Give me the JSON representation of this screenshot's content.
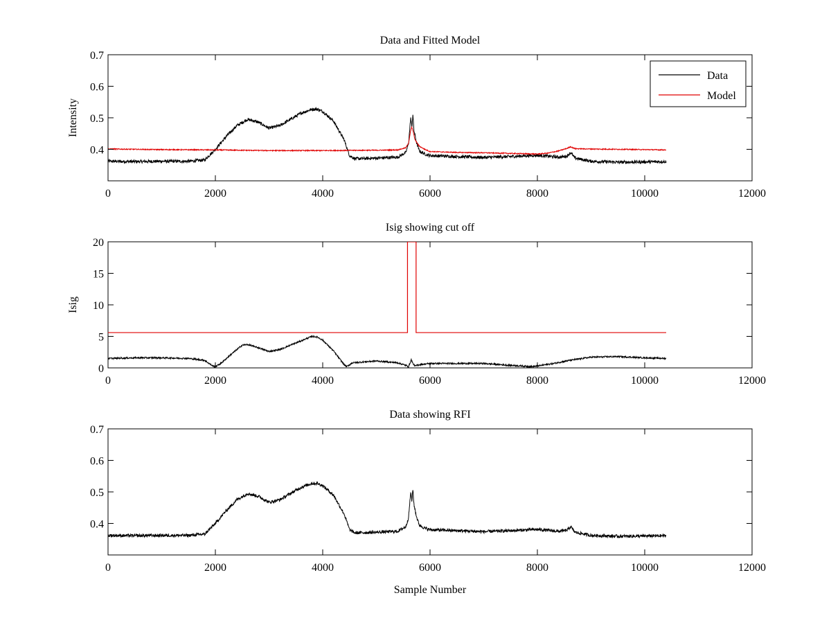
{
  "chart_data": [
    {
      "type": "line",
      "title": "Data and Fitted Model",
      "xlabel": "",
      "ylabel": "Intensity",
      "xlim": [
        0,
        12000
      ],
      "ylim": [
        0.3,
        0.7
      ],
      "xticks": [
        0,
        2000,
        4000,
        6000,
        8000,
        10000,
        12000
      ],
      "yticks": [
        0.4,
        0.5,
        0.6,
        0.7
      ],
      "grid": false,
      "legend": "top-right",
      "series": [
        {
          "name": "Data",
          "color": "#000000",
          "noise": 0.005,
          "x": [
            0,
            500,
            1000,
            1500,
            1800,
            2000,
            2200,
            2400,
            2600,
            2800,
            3000,
            3200,
            3400,
            3600,
            3800,
            3900,
            4000,
            4200,
            4400,
            4500,
            4600,
            5000,
            5400,
            5550,
            5600,
            5640,
            5660,
            5680,
            5700,
            5750,
            5800,
            5900,
            6000,
            6500,
            7000,
            7500,
            8000,
            8200,
            8400,
            8550,
            8620,
            8700,
            9000,
            9500,
            10000,
            10400
          ],
          "y": [
            0.362,
            0.361,
            0.362,
            0.362,
            0.366,
            0.4,
            0.44,
            0.475,
            0.495,
            0.486,
            0.467,
            0.475,
            0.495,
            0.515,
            0.527,
            0.527,
            0.52,
            0.49,
            0.43,
            0.38,
            0.37,
            0.372,
            0.375,
            0.39,
            0.42,
            0.5,
            0.47,
            0.51,
            0.46,
            0.42,
            0.395,
            0.385,
            0.38,
            0.377,
            0.374,
            0.377,
            0.381,
            0.378,
            0.375,
            0.378,
            0.39,
            0.372,
            0.362,
            0.359,
            0.36,
            0.361
          ]
        },
        {
          "name": "Model",
          "color": "#e00000",
          "noise": 0.0015,
          "x": [
            0,
            1000,
            2000,
            3000,
            4000,
            5000,
            5400,
            5550,
            5600,
            5640,
            5660,
            5680,
            5720,
            5800,
            5900,
            6000,
            6500,
            7000,
            7500,
            8000,
            8200,
            8400,
            8550,
            8620,
            8700,
            9000,
            9500,
            10000,
            10400
          ],
          "y": [
            0.401,
            0.399,
            0.398,
            0.396,
            0.396,
            0.397,
            0.398,
            0.405,
            0.42,
            0.46,
            0.47,
            0.46,
            0.43,
            0.41,
            0.4,
            0.393,
            0.39,
            0.389,
            0.387,
            0.385,
            0.388,
            0.395,
            0.403,
            0.408,
            0.402,
            0.401,
            0.4,
            0.399,
            0.398
          ]
        }
      ]
    },
    {
      "type": "line",
      "title": "Isig showing cut off",
      "xlabel": "",
      "ylabel": "Isig",
      "xlim": [
        0,
        12000
      ],
      "ylim": [
        0,
        20
      ],
      "xticks": [
        0,
        2000,
        4000,
        6000,
        8000,
        10000,
        12000
      ],
      "yticks": [
        0,
        5,
        10,
        15,
        20
      ],
      "grid": false,
      "series": [
        {
          "name": "",
          "color": "#000000",
          "noise": 0.12,
          "x": [
            0,
            500,
            1000,
            1500,
            1800,
            1950,
            2000,
            2100,
            2300,
            2500,
            2600,
            2800,
            3000,
            3200,
            3400,
            3600,
            3800,
            3900,
            4000,
            4200,
            4400,
            4450,
            4550,
            5000,
            5400,
            5550,
            5600,
            5650,
            5680,
            5720,
            5800,
            6000,
            6500,
            7000,
            7500,
            7900,
            8000,
            8300,
            8600,
            9000,
            9500,
            10000,
            10400
          ],
          "y": [
            1.5,
            1.6,
            1.6,
            1.5,
            1.2,
            0.3,
            0.2,
            0.7,
            2.2,
            3.6,
            3.7,
            3.2,
            2.6,
            2.9,
            3.6,
            4.3,
            5.0,
            4.9,
            4.4,
            2.7,
            0.5,
            0.2,
            0.8,
            1.1,
            0.8,
            0.4,
            0.2,
            1.3,
            0.7,
            0.3,
            0.5,
            0.7,
            0.7,
            0.7,
            0.4,
            0.2,
            0.3,
            0.7,
            1.2,
            1.7,
            1.8,
            1.6,
            1.5
          ]
        },
        {
          "name": "",
          "color": "#e00000",
          "noise": 0,
          "x": [
            0,
            5580,
            5580,
            5740,
            5740,
            10400
          ],
          "y": [
            5.6,
            5.6,
            20,
            20,
            5.6,
            5.6
          ]
        }
      ]
    },
    {
      "type": "line",
      "title": "Data showing RFI",
      "xlabel": "Sample Number",
      "ylabel": "",
      "xlim": [
        0,
        12000
      ],
      "ylim": [
        0.3,
        0.7
      ],
      "xticks": [
        0,
        2000,
        4000,
        6000,
        8000,
        10000,
        12000
      ],
      "yticks": [
        0.4,
        0.5,
        0.6,
        0.7
      ],
      "grid": false,
      "series": [
        {
          "name": "",
          "color": "#000000",
          "noise": 0.005,
          "x": [
            0,
            500,
            1000,
            1500,
            1800,
            2000,
            2200,
            2400,
            2600,
            2800,
            3000,
            3200,
            3400,
            3600,
            3800,
            3900,
            4000,
            4200,
            4400,
            4500,
            4600,
            5000,
            5400,
            5550,
            5600,
            5640,
            5660,
            5680,
            5700,
            5750,
            5800,
            5900,
            6000,
            6500,
            7000,
            7500,
            8000,
            8200,
            8400,
            8550,
            8620,
            8700,
            9000,
            9500,
            10000,
            10400
          ],
          "y": [
            0.362,
            0.361,
            0.362,
            0.362,
            0.366,
            0.4,
            0.44,
            0.475,
            0.495,
            0.486,
            0.467,
            0.475,
            0.495,
            0.515,
            0.527,
            0.527,
            0.52,
            0.49,
            0.43,
            0.38,
            0.37,
            0.372,
            0.375,
            0.39,
            0.42,
            0.5,
            0.47,
            0.51,
            0.46,
            0.42,
            0.395,
            0.385,
            0.38,
            0.377,
            0.374,
            0.377,
            0.381,
            0.378,
            0.375,
            0.378,
            0.39,
            0.372,
            0.362,
            0.359,
            0.36,
            0.361
          ]
        }
      ]
    }
  ]
}
